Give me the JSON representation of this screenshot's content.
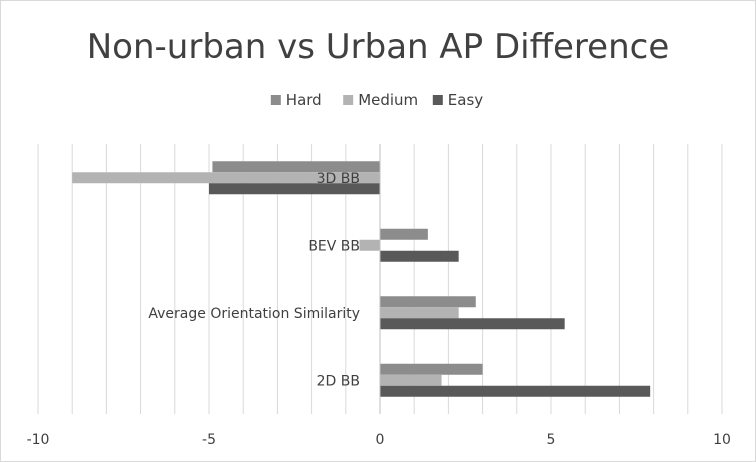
{
  "chart_data": {
    "type": "bar",
    "orientation": "horizontal",
    "title": "Non-urban vs Urban AP Difference",
    "categories": [
      "3D BB",
      "BEV BB",
      "Average Orientation Similarity",
      "2D BB"
    ],
    "series": [
      {
        "name": "Hard",
        "values": [
          -4.9,
          1.4,
          2.8,
          3.0
        ],
        "color": "#8c8c8c"
      },
      {
        "name": "Medium",
        "values": [
          -9.0,
          -0.6,
          2.3,
          1.8
        ],
        "color": "#b3b3b3"
      },
      {
        "name": "Easy",
        "values": [
          -5.0,
          2.3,
          5.4,
          7.9
        ],
        "color": "#595959"
      }
    ],
    "xlim": [
      -10,
      10
    ],
    "xticks": [
      "-10",
      "-5",
      "0",
      "5",
      "10"
    ],
    "xlabel": "",
    "ylabel": "",
    "grid": "vertical",
    "legend": "top"
  }
}
